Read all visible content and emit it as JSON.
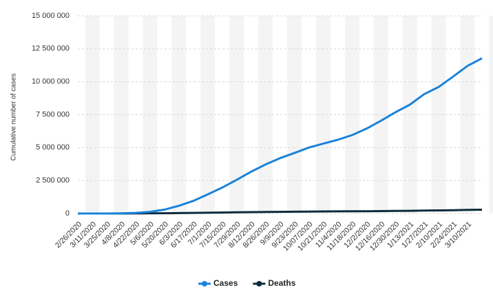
{
  "chart_data": {
    "type": "line",
    "y_axis_label": "Cumulative number of cases",
    "categories": [
      "2/26/2020",
      "3/11/2020",
      "3/25/2020",
      "4/8/2020",
      "4/22/2020",
      "5/6/2020",
      "5/20/2020",
      "6/3/2020",
      "6/17/2020",
      "7/1/2020",
      "7/15/2020",
      "7/29/2020",
      "8/12/2020",
      "8/26/2020",
      "9/9/2020",
      "9/23/2020",
      "10/07/2020",
      "10/21/2020",
      "11/4/2020",
      "11/18/2020",
      "12/2/2020",
      "12/16/2020",
      "12/30/2020",
      "1/13/2021",
      "1/27/2021",
      "2/10/2021",
      "2/24/2021",
      "3/10/2021",
      null
    ],
    "series": [
      {
        "name": "Cases",
        "color": "#1a82d9",
        "values": [
          1,
          52,
          2433,
          15927,
          45757,
          125218,
          291579,
          584016,
          955377,
          1448753,
          1966748,
          2552265,
          3164785,
          3717156,
          4197889,
          4591364,
          5000694,
          5298772,
          5590025,
          5945849,
          6436650,
          7040608,
          7675973,
          8256536,
          9058687,
          9599565,
          10390461,
          11202305,
          11780820
        ]
      },
      {
        "name": "Deaths",
        "color": "#0c2a3e",
        "values": [
          0,
          0,
          59,
          941,
          2906,
          8536,
          18859,
          32548,
          46510,
          59594,
          75366,
          90134,
          104201,
          116580,
          127464,
          137272,
          148228,
          155403,
          161736,
          167455,
          174515,
          183735,
          194949,
          205964,
          219777,
          233520,
          249957,
          270656,
          287499
        ]
      }
    ],
    "ylim": [
      0,
      15000000
    ],
    "yticks": [
      0,
      {
        "value": 2500000,
        "label": "2 500 000"
      },
      {
        "value": 5000000,
        "label": "5 000 000"
      },
      {
        "value": 7500000,
        "label": "7 500 000"
      },
      {
        "value": 10000000,
        "label": "10 000 000"
      },
      {
        "value": 12500000,
        "label": "12 500 000"
      },
      {
        "value": 15000000,
        "label": "15 000 000"
      }
    ],
    "grid": true,
    "legend": "bottom"
  }
}
